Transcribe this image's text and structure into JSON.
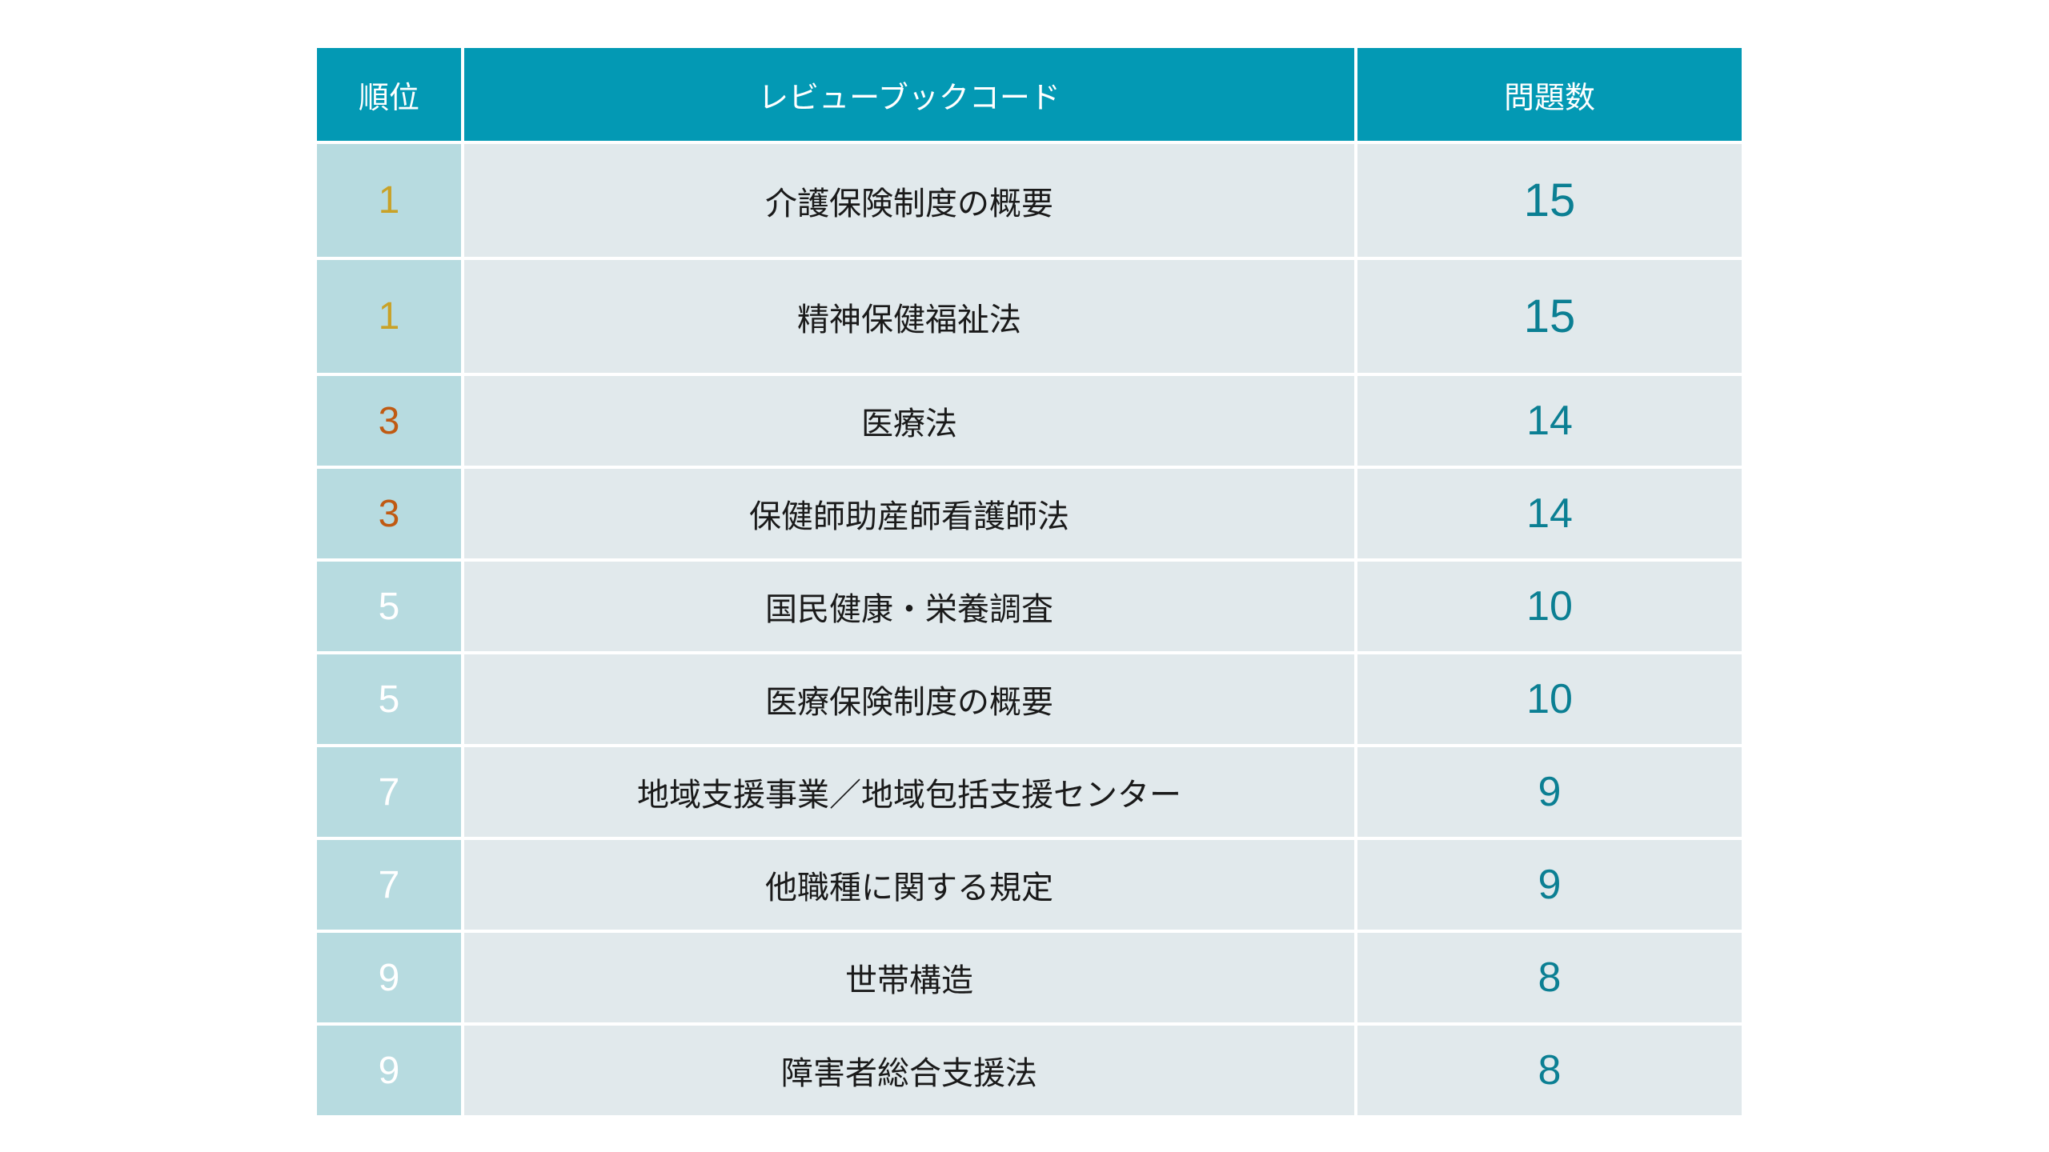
{
  "table": {
    "headers": {
      "rank": "順位",
      "code": "レビューブックコード",
      "count": "問題数"
    },
    "rows": [
      {
        "rank": "1",
        "name": "介護保険制度の概要",
        "count": "15"
      },
      {
        "rank": "1",
        "name": "精神保健福祉法",
        "count": "15"
      },
      {
        "rank": "3",
        "name": "医療法",
        "count": "14"
      },
      {
        "rank": "3",
        "name": "保健師助産師看護師法",
        "count": "14"
      },
      {
        "rank": "5",
        "name": "国民健康・栄養調査",
        "count": "10"
      },
      {
        "rank": "5",
        "name": "医療保険制度の概要",
        "count": "10"
      },
      {
        "rank": "7",
        "name": "地域支援事業／地域包括支援センター",
        "count": "9"
      },
      {
        "rank": "7",
        "name": "他職種に関する規定",
        "count": "9"
      },
      {
        "rank": "9",
        "name": "世帯構造",
        "count": "8"
      },
      {
        "rank": "9",
        "name": "障害者総合支援法",
        "count": "8"
      }
    ]
  },
  "colors": {
    "header_bg": "#0399b4",
    "rank_cell_bg": "#b7dbe0",
    "body_cell_bg": "#e1e9ec",
    "rank_gold": "#c9a227",
    "rank_bronze": "#c05a12",
    "rank_white": "#ffffff",
    "count_teal": "#0b7f93"
  }
}
